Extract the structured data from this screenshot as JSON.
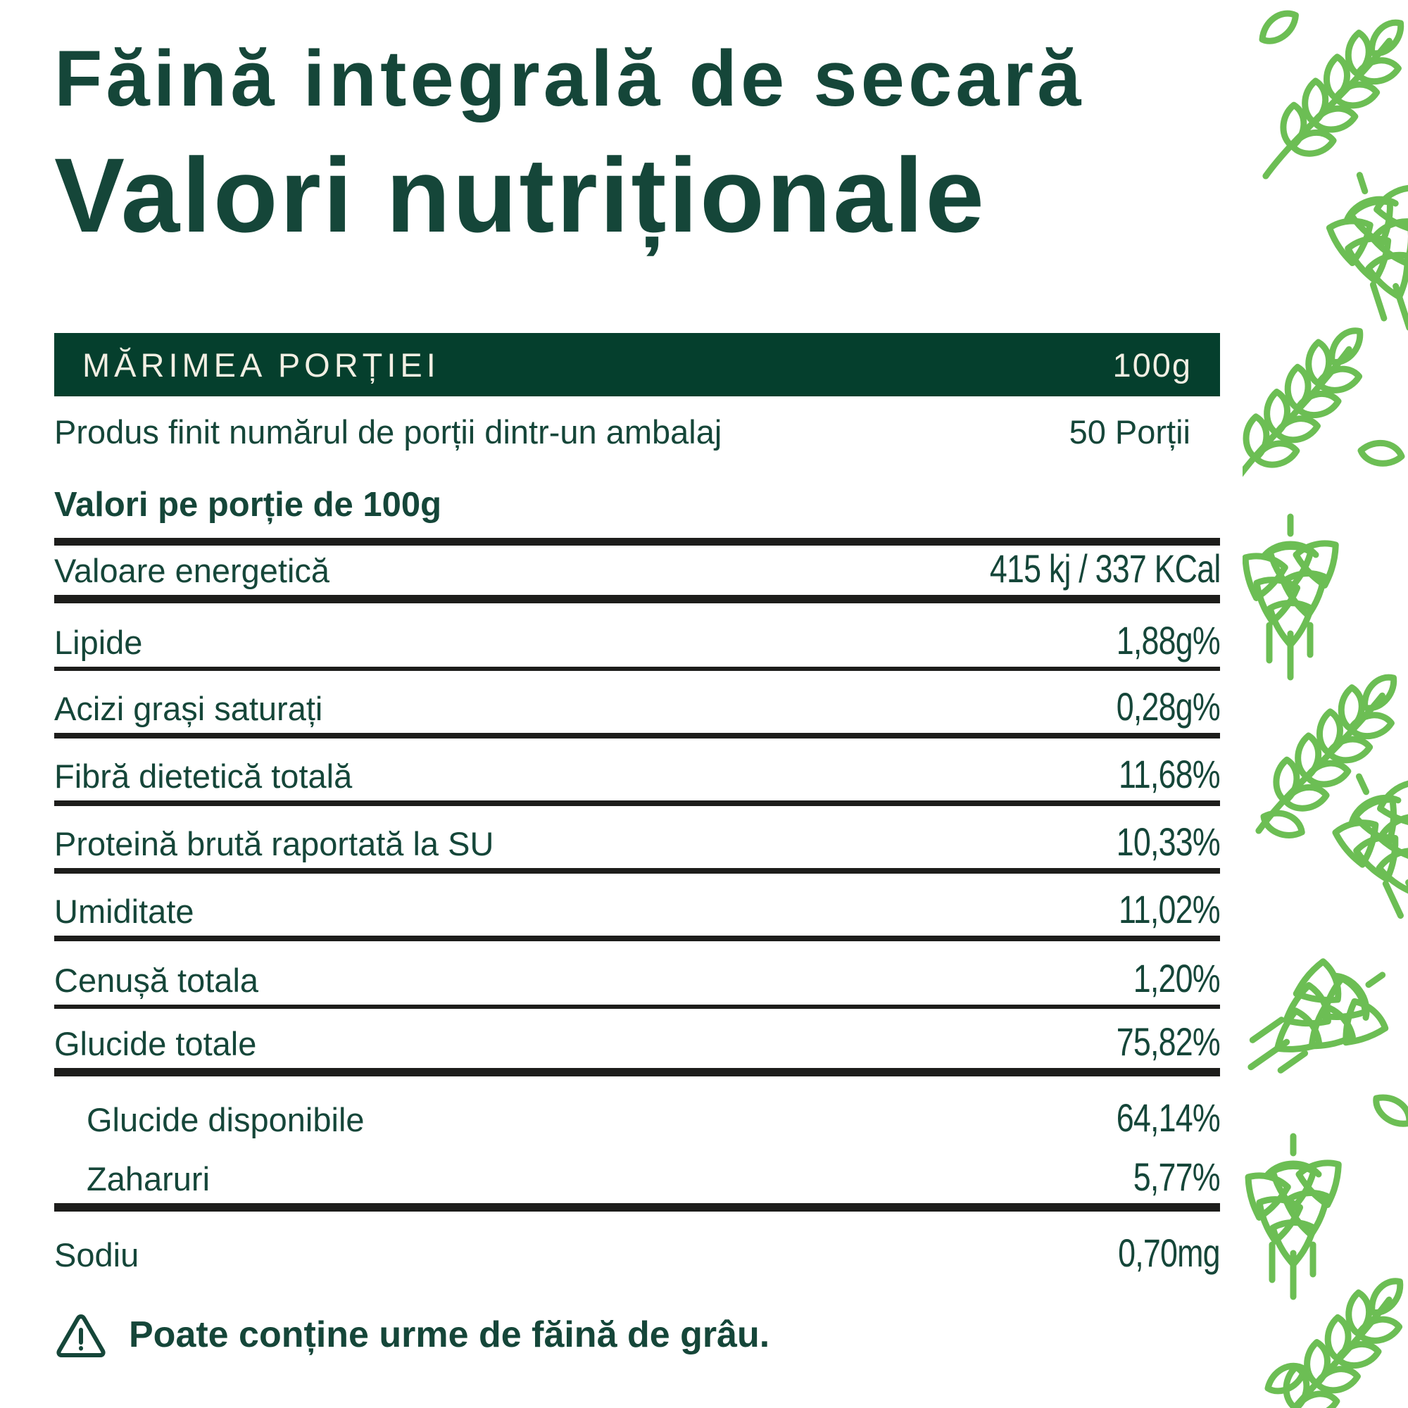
{
  "header": {
    "product_title": "Făină integrală de secară",
    "section_title": "Valori nutriționale"
  },
  "serving_bar": {
    "label": "MĂRIMEA PORȚIEI",
    "value": "100g"
  },
  "servings_row": {
    "label": "Produs finit numărul de porții dintr-un ambalaj",
    "value": "50 Porții"
  },
  "per_serving_heading": "Valori pe porție de 100g",
  "table": {
    "rows": [
      {
        "label": "Valoare energetică",
        "value": "415 kj / 337 KCal",
        "sub": false,
        "rule": "thick"
      },
      {
        "label": "Lipide",
        "value": "1,88g%",
        "sub": false,
        "rule": "thin"
      },
      {
        "label": "Acizi grași saturați",
        "value": "0,28g%",
        "sub": false,
        "rule": "medium"
      },
      {
        "label": "Fibră dietetică totală",
        "value": "11,68%",
        "sub": false,
        "rule": "medium"
      },
      {
        "label": "Proteină brută raportată la SU",
        "value": "10,33%",
        "sub": false,
        "rule": "medium"
      },
      {
        "label": "Umiditate",
        "value": "11,02%",
        "sub": false,
        "rule": "medium"
      },
      {
        "label": "Cenușă totala",
        "value": "1,20%",
        "sub": false,
        "rule": "thin"
      },
      {
        "label": "Glucide totale",
        "value": "75,82%",
        "sub": false,
        "rule": "thick"
      },
      {
        "label": "Glucide disponibile",
        "value": "64,14%",
        "sub": true,
        "rule": "none"
      },
      {
        "label": "Zaharuri",
        "value": "5,77%",
        "sub": true,
        "rule": "thick"
      },
      {
        "label": "Sodiu",
        "value": "0,70mg",
        "sub": false,
        "rule": "none"
      }
    ]
  },
  "allergen": {
    "text": "Poate conține urme de făină de grâu."
  },
  "icons": {
    "warning": "warning-triangle-icon",
    "side_pattern": "rye-and-hops-line-art"
  },
  "colors": {
    "dark_green": "#154639",
    "bar_green": "#053f2d",
    "cream": "#f2efe3",
    "rule_black": "#1d1d1b",
    "pattern_green": "#6cbe54"
  }
}
